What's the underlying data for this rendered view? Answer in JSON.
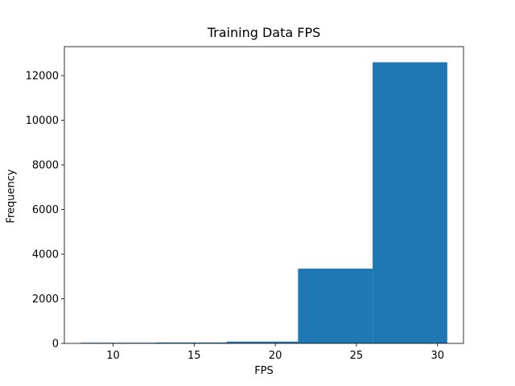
{
  "chart_data": {
    "type": "bar",
    "title": "Training Data FPS",
    "xlabel": "FPS",
    "ylabel": "Frequency",
    "bins": [
      {
        "start": 8.0,
        "end": 12.6,
        "count": 2
      },
      {
        "start": 12.6,
        "end": 17.0,
        "count": 40
      },
      {
        "start": 17.0,
        "end": 21.4,
        "count": 80
      },
      {
        "start": 21.4,
        "end": 26.0,
        "count": 3350
      },
      {
        "start": 26.0,
        "end": 30.6,
        "count": 12600
      }
    ],
    "xlim": [
      7.0,
      31.6
    ],
    "ylim": [
      0,
      13300
    ],
    "xticks": [
      10,
      15,
      20,
      25,
      30
    ],
    "yticks": [
      0,
      2000,
      4000,
      6000,
      8000,
      10000,
      12000
    ],
    "bar_color": "#1f77b4",
    "grid": false,
    "legend": "none"
  }
}
